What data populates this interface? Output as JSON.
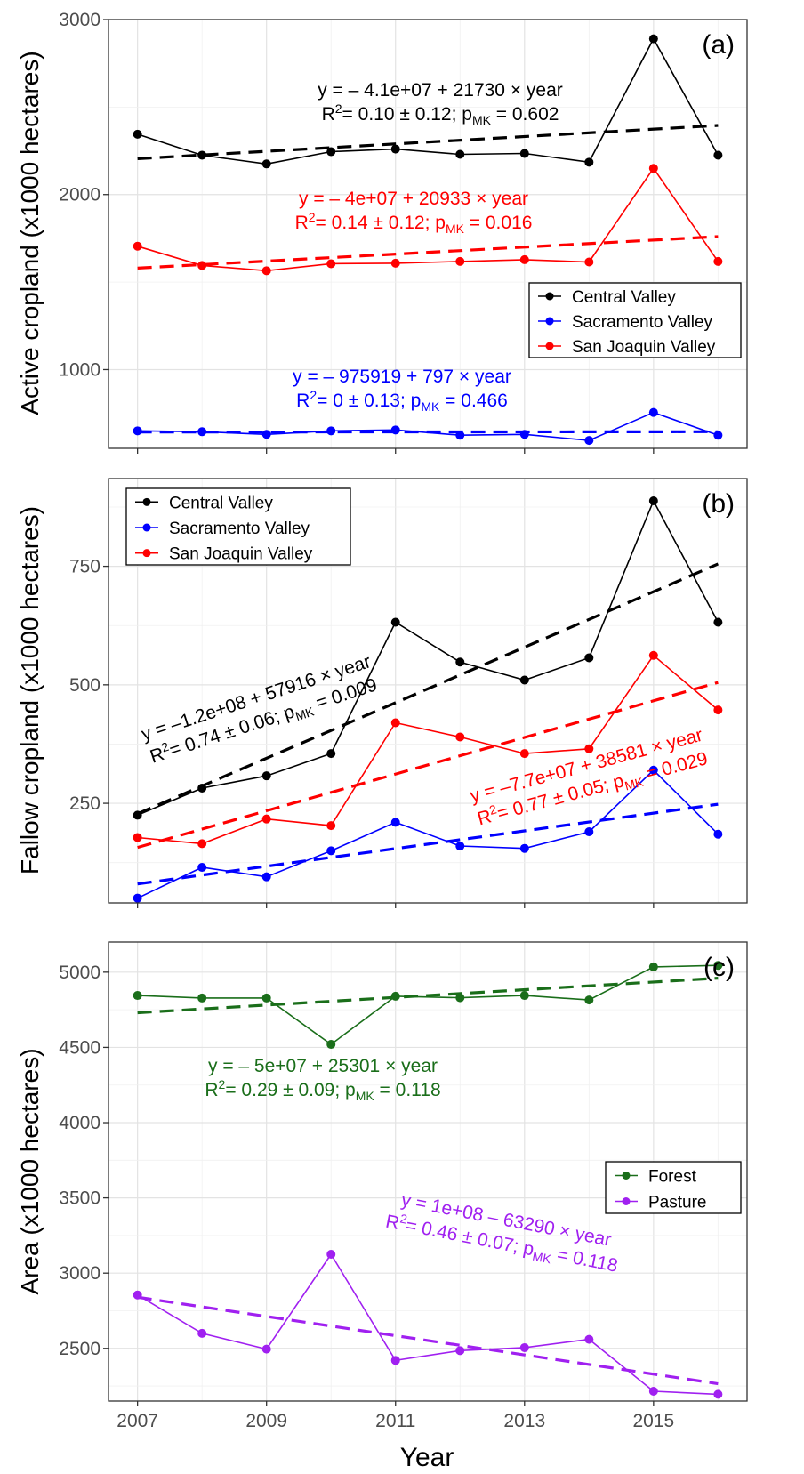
{
  "chart_data": [
    {
      "id": "a",
      "type": "line",
      "panel_label": "(a)",
      "ylabel": "Active cropland (x1000 hectares)",
      "ylim": [
        550,
        3000
      ],
      "yticks": [
        1000,
        2000,
        3000
      ],
      "x": [
        2007,
        2008,
        2009,
        2010,
        2011,
        2012,
        2013,
        2014,
        2015,
        2016
      ],
      "series": [
        {
          "name": "Central Valley",
          "color": "#000000",
          "values": [
            2345,
            2225,
            2175,
            2245,
            2260,
            2230,
            2235,
            2185,
            2890,
            2225
          ],
          "trend": [
            2205,
            2395
          ],
          "annotation": {
            "line1": "y = – 4.1e+07 + 21730 × year",
            "r2": "0.10 ± 0.12",
            "pmk": "0.602"
          }
        },
        {
          "name": "Sacramento Valley",
          "color": "#0000ff",
          "values": [
            650,
            645,
            630,
            650,
            655,
            625,
            630,
            595,
            755,
            625
          ],
          "trend": [
            643,
            645
          ],
          "annotation": {
            "line1": "y = – 975919 + 797 × year",
            "r2": "0 ± 0.13",
            "pmk": "0.466"
          }
        },
        {
          "name": "San Joaquin Valley",
          "color": "#ff0000",
          "values": [
            1705,
            1595,
            1565,
            1605,
            1608,
            1618,
            1628,
            1615,
            2150,
            1618
          ],
          "trend": [
            1580,
            1760
          ],
          "annotation": {
            "line1": "y = – 4e+07 + 20933 × year",
            "r2": "0.14 ± 0.12",
            "pmk": "0.016"
          }
        }
      ],
      "legend": [
        "Central Valley",
        "Sacramento Valley",
        "San Joaquin Valley"
      ]
    },
    {
      "id": "b",
      "type": "line",
      "panel_label": "(b)",
      "ylabel": "Fallow cropland (x1000 hectares)",
      "ylim": [
        40,
        935
      ],
      "yticks": [
        250,
        500,
        750
      ],
      "x": [
        2007,
        2008,
        2009,
        2010,
        2011,
        2012,
        2013,
        2014,
        2015,
        2016
      ],
      "series": [
        {
          "name": "Central Valley",
          "color": "#000000",
          "values": [
            225,
            282,
            308,
            355,
            632,
            548,
            510,
            557,
            888,
            632
          ],
          "trend": [
            228,
            755
          ],
          "annotation": {
            "line1": "y = –1.2e+08 + 57916 × year",
            "r2": "0.74 ± 0.06",
            "pmk": "0.009"
          }
        },
        {
          "name": "Sacramento Valley",
          "color": "#0000ff",
          "values": [
            50,
            115,
            95,
            150,
            210,
            160,
            155,
            190,
            320,
            185
          ],
          "trend": [
            80,
            248
          ],
          "annotation": null
        },
        {
          "name": "San Joaquin Valley",
          "color": "#ff0000",
          "values": [
            178,
            165,
            217,
            203,
            420,
            390,
            355,
            365,
            562,
            447
          ],
          "trend": [
            157,
            505
          ],
          "annotation": {
            "line1": "y = –7.7e+07 + 38581 × year",
            "r2": "0.77 ± 0.05",
            "pmk": "0.029"
          }
        }
      ],
      "legend": [
        "Central Valley",
        "Sacramento Valley",
        "San Joaquin Valley"
      ]
    },
    {
      "id": "c",
      "type": "line",
      "panel_label": "(c)",
      "ylabel": "Area (x1000 hectares)",
      "ylim": [
        2150,
        5200
      ],
      "yticks": [
        2500,
        3000,
        3500,
        4000,
        4500,
        5000
      ],
      "x": [
        2007,
        2008,
        2009,
        2010,
        2011,
        2012,
        2013,
        2014,
        2015,
        2016
      ],
      "series": [
        {
          "name": "Forest",
          "color": "#1a6e1a",
          "values": [
            4845,
            4828,
            4828,
            4520,
            4840,
            4830,
            4845,
            4815,
            5035,
            5045
          ],
          "trend": [
            4730,
            4960
          ],
          "annotation": {
            "line1": "y = – 5e+07 + 25301 × year",
            "r2": "0.29 ± 0.09",
            "pmk": "0.118"
          }
        },
        {
          "name": "Pasture",
          "color": "#a020f0",
          "values": [
            2855,
            2600,
            2495,
            3125,
            2420,
            2485,
            2505,
            2560,
            2215,
            2195
          ],
          "trend": [
            2840,
            2265
          ],
          "annotation": {
            "line1": "y = 1e+08 – 63290 × year",
            "r2": "0.46 ± 0.07",
            "pmk": "0.118"
          }
        }
      ],
      "legend": [
        "Forest",
        "Pasture"
      ]
    }
  ],
  "x_axis": {
    "label": "Year",
    "ticks": [
      "2007",
      "2009",
      "2011",
      "2013",
      "2015"
    ]
  }
}
